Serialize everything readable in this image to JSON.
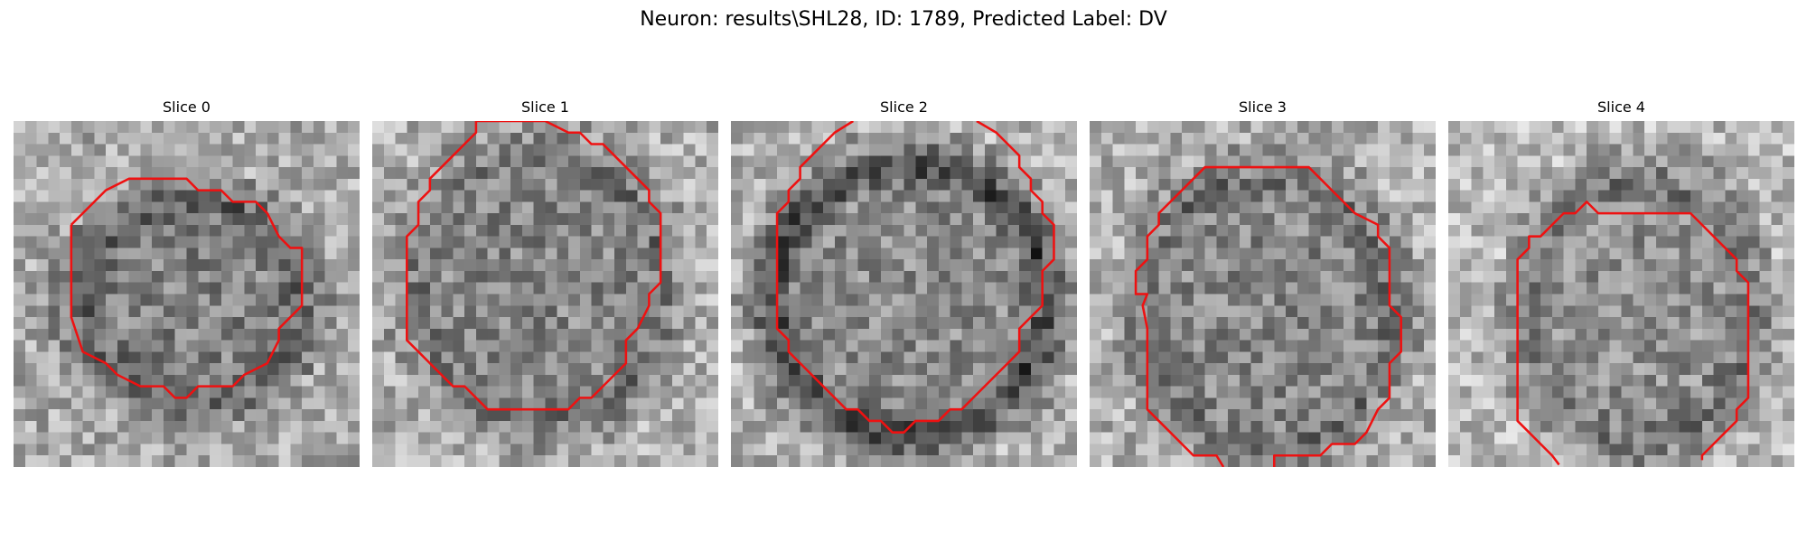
{
  "figure": {
    "title": "Neuron: results\\SHL28, ID: 1789, Predicted Label: DV"
  },
  "panels": [
    {
      "title": "Slice 0"
    },
    {
      "title": "Slice 1"
    },
    {
      "title": "Slice 2"
    },
    {
      "title": "Slice 3"
    },
    {
      "title": "Slice 4"
    }
  ],
  "style": {
    "contour_color": "#ee1111"
  }
}
